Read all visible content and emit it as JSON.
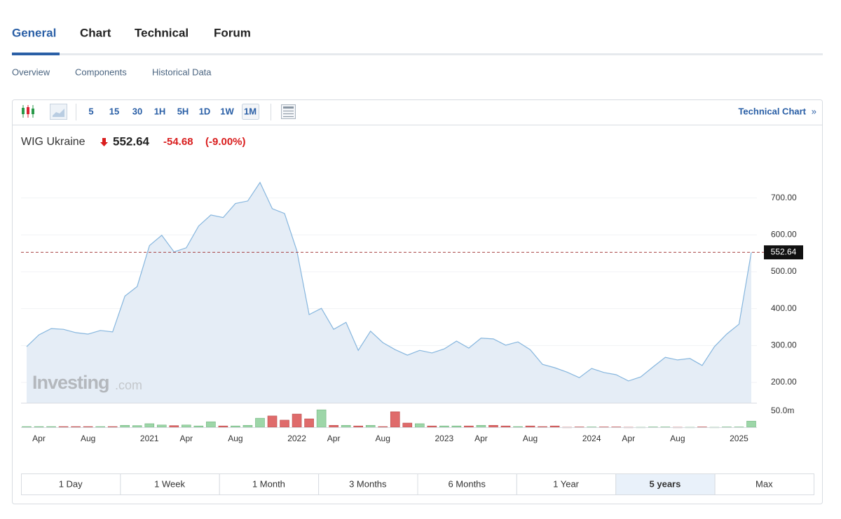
{
  "tabs": [
    "General",
    "Chart",
    "Technical",
    "Forum"
  ],
  "subtabs": [
    "Overview",
    "Components",
    "Historical Data"
  ],
  "toolbar": {
    "intervals": [
      "5",
      "15",
      "30",
      "1H",
      "5H",
      "1D",
      "1W",
      "1M"
    ],
    "link": "Technical Chart",
    "link_arrow": "»"
  },
  "quote": {
    "name": "WIG Ukraine",
    "price": "552.64",
    "change": "-54.68",
    "change_pct": "(-9.00%)"
  },
  "watermark": {
    "brand": "Investing",
    "suffix": ".com"
  },
  "chart_data": [
    {
      "type": "line",
      "categories": [
        null,
        "Apr",
        null,
        null,
        null,
        "Aug",
        null,
        null,
        null,
        null,
        "2021",
        null,
        null,
        "Apr",
        null,
        null,
        null,
        "Aug",
        null,
        null,
        null,
        null,
        "2022",
        null,
        null,
        "Apr",
        null,
        null,
        null,
        "Aug",
        null,
        null,
        null,
        null,
        "2023",
        null,
        null,
        "Apr",
        null,
        null,
        null,
        "Aug",
        null,
        null,
        null,
        null,
        "2024",
        null,
        null,
        "Apr",
        null,
        null,
        null,
        "Aug",
        null,
        null,
        null,
        null,
        "2025",
        null
      ],
      "values": [
        297,
        329,
        346,
        344,
        335,
        331,
        341,
        337,
        434,
        460,
        571,
        599,
        554,
        565,
        624,
        654,
        647,
        685,
        692,
        742,
        671,
        658,
        557,
        384,
        401,
        344,
        363,
        287,
        339,
        308,
        289,
        274,
        287,
        280,
        291,
        312,
        293,
        320,
        318,
        301,
        310,
        289,
        249,
        240,
        228,
        213,
        238,
        227,
        221,
        204,
        215,
        242,
        268,
        261,
        265,
        246,
        297,
        331,
        358,
        552.64
      ],
      "color": "#86b6de",
      "fill": "#e5edf6",
      "price_line_color": "#a33a3a",
      "ylim": [
        145,
        800
      ],
      "yticks": [
        {
          "value": 200,
          "label": "200.00"
        },
        {
          "value": 300,
          "label": "300.00"
        },
        {
          "value": 400,
          "label": "400.00"
        },
        {
          "value": 500,
          "label": "500.00"
        },
        {
          "value": 600,
          "label": "600.00"
        },
        {
          "value": 700,
          "label": "700.00"
        }
      ],
      "grid": true
    },
    {
      "type": "bar",
      "values": [
        2,
        2,
        2,
        2,
        2,
        2,
        2,
        2,
        6,
        5,
        11,
        7,
        5,
        7,
        4,
        17,
        4,
        4,
        6,
        28,
        35,
        22,
        41,
        26,
        54,
        6,
        6,
        4,
        6,
        2,
        48,
        13,
        11,
        4,
        4,
        4,
        4,
        6,
        6,
        4,
        2,
        4,
        2,
        4,
        0,
        1,
        1,
        1,
        1,
        0,
        0,
        1,
        1,
        0,
        0,
        1,
        0,
        1,
        1,
        19
      ],
      "up_color": "#9dd6a8",
      "down_color": "#df6b6b",
      "ylim": [
        0,
        76
      ],
      "yticks": [
        {
          "value": 50,
          "label": "50.0m"
        }
      ]
    }
  ],
  "ranges": [
    "1 Day",
    "1 Week",
    "1 Month",
    "3 Months",
    "6 Months",
    "1 Year",
    "5 years",
    "Max"
  ]
}
